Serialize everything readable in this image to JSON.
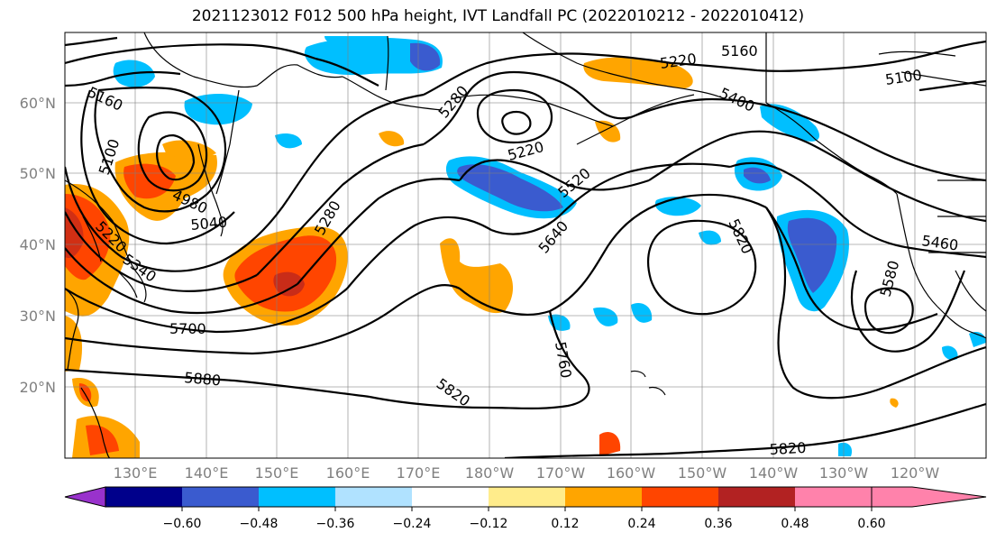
{
  "title": "2021123012 F012 500 hPa height, IVT Landfall PC (2022010212 - 2022010412)",
  "lat_labels": [
    "60°N",
    "50°N",
    "40°N",
    "30°N",
    "20°N"
  ],
  "lon_labels": [
    "130°E",
    "140°E",
    "150°E",
    "160°E",
    "170°E",
    "180°W",
    "170°W",
    "160°W",
    "150°W",
    "140°W",
    "130°W",
    "120°W"
  ],
  "contour_labels": [
    "5160",
    "5160",
    "5220",
    "5100",
    "5280",
    "5220",
    "5100",
    "5400",
    "4980",
    "5040",
    "5520",
    "5220",
    "5280",
    "5340",
    "5640",
    "5820",
    "5460",
    "5580",
    "5700",
    "5760",
    "5880",
    "5820",
    "5820"
  ],
  "colorbar": {
    "ticks": [
      "−0.60",
      "−0.48",
      "−0.36",
      "−0.24",
      "−0.12",
      "0.12",
      "0.24",
      "0.36",
      "0.48",
      "0.60"
    ],
    "colors": [
      "#9932cc",
      "#00008b",
      "#3a5bcf",
      "#00bfff",
      "#b0e2ff",
      "#ffffff",
      "#ffec8b",
      "#ffa500",
      "#ff4500",
      "#b22222",
      "#ff82ab"
    ]
  }
}
